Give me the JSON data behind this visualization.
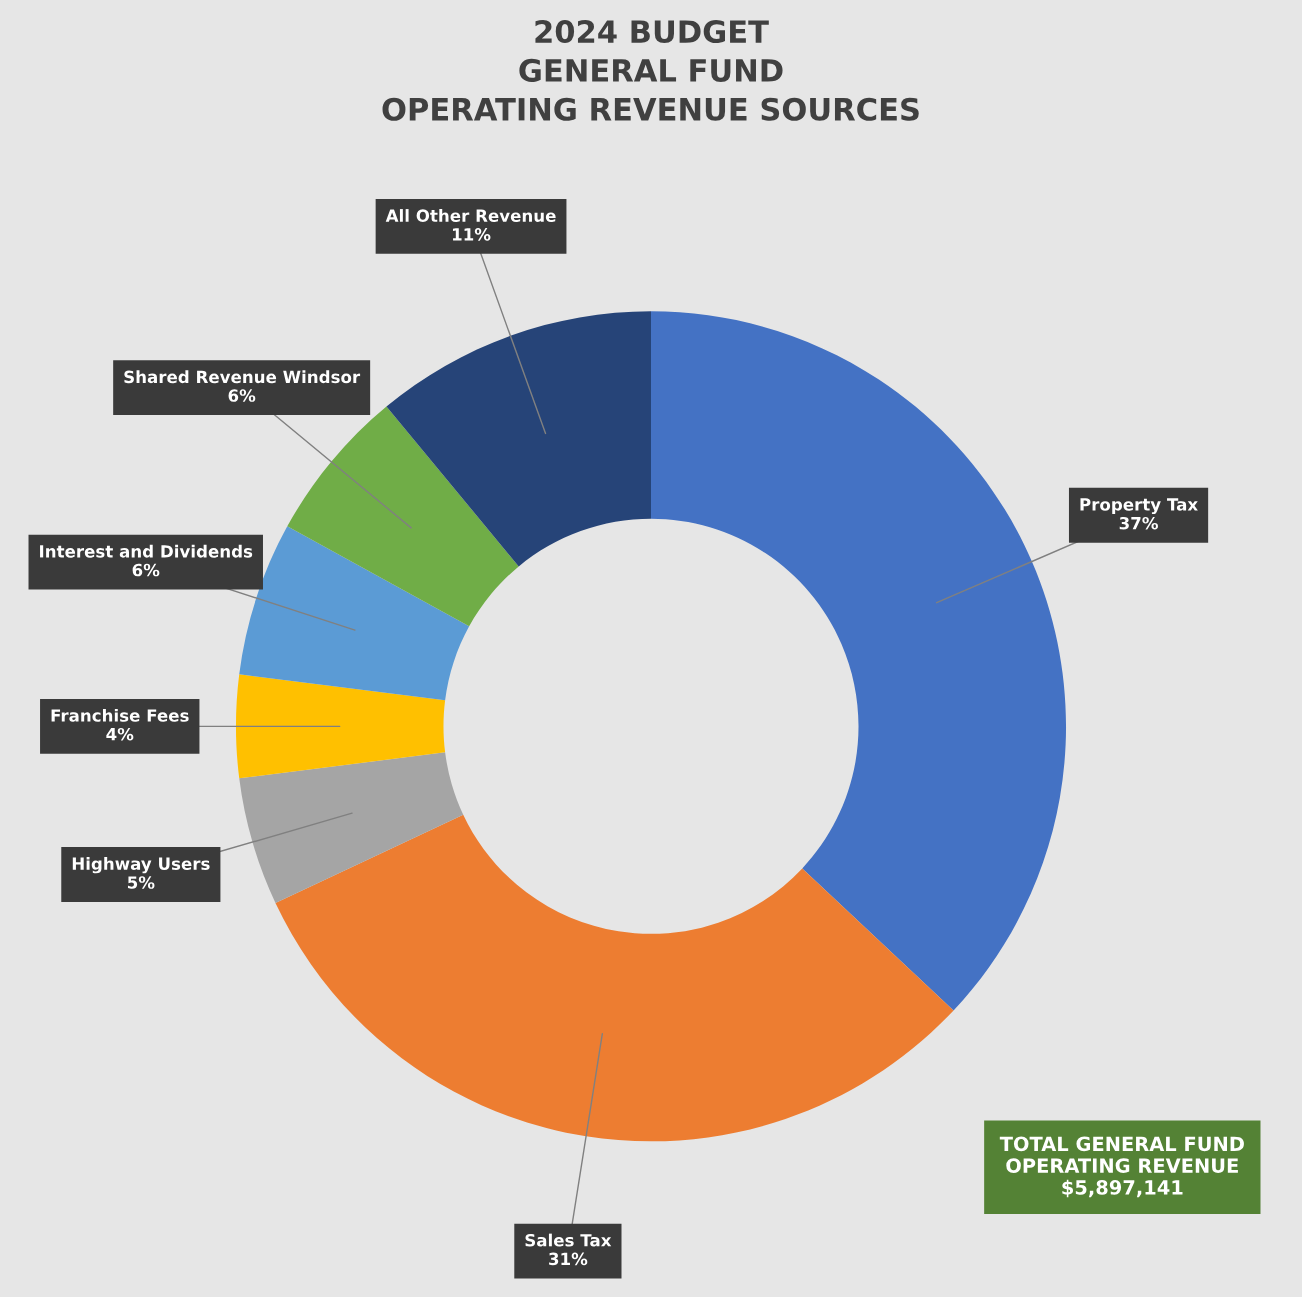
{
  "chart_data": {
    "type": "donut",
    "title": "2024 BUDGET\nGENERAL FUND\nOPERATING REVENUE SOURCES",
    "categories": [
      "Property Tax",
      "Sales Tax",
      "Highway Users",
      "Franchise Fees",
      "Interest and Dividends",
      "Shared Revenue Windsor",
      "All Other Revenue"
    ],
    "values": [
      37,
      31,
      5,
      4,
      6,
      6,
      11
    ],
    "value_labels": [
      "37%",
      "31%",
      "5%",
      "4%",
      "6%",
      "6%",
      "11%"
    ],
    "colors": [
      "#4472c4",
      "#ed7d31",
      "#a5a5a5",
      "#ffc000",
      "#5b9bd5",
      "#70ad47",
      "#264478"
    ],
    "annotations": [
      "TOTAL GENERAL FUND\nOPERATING REVENUE\n$5,897,141"
    ],
    "legend": false
  }
}
